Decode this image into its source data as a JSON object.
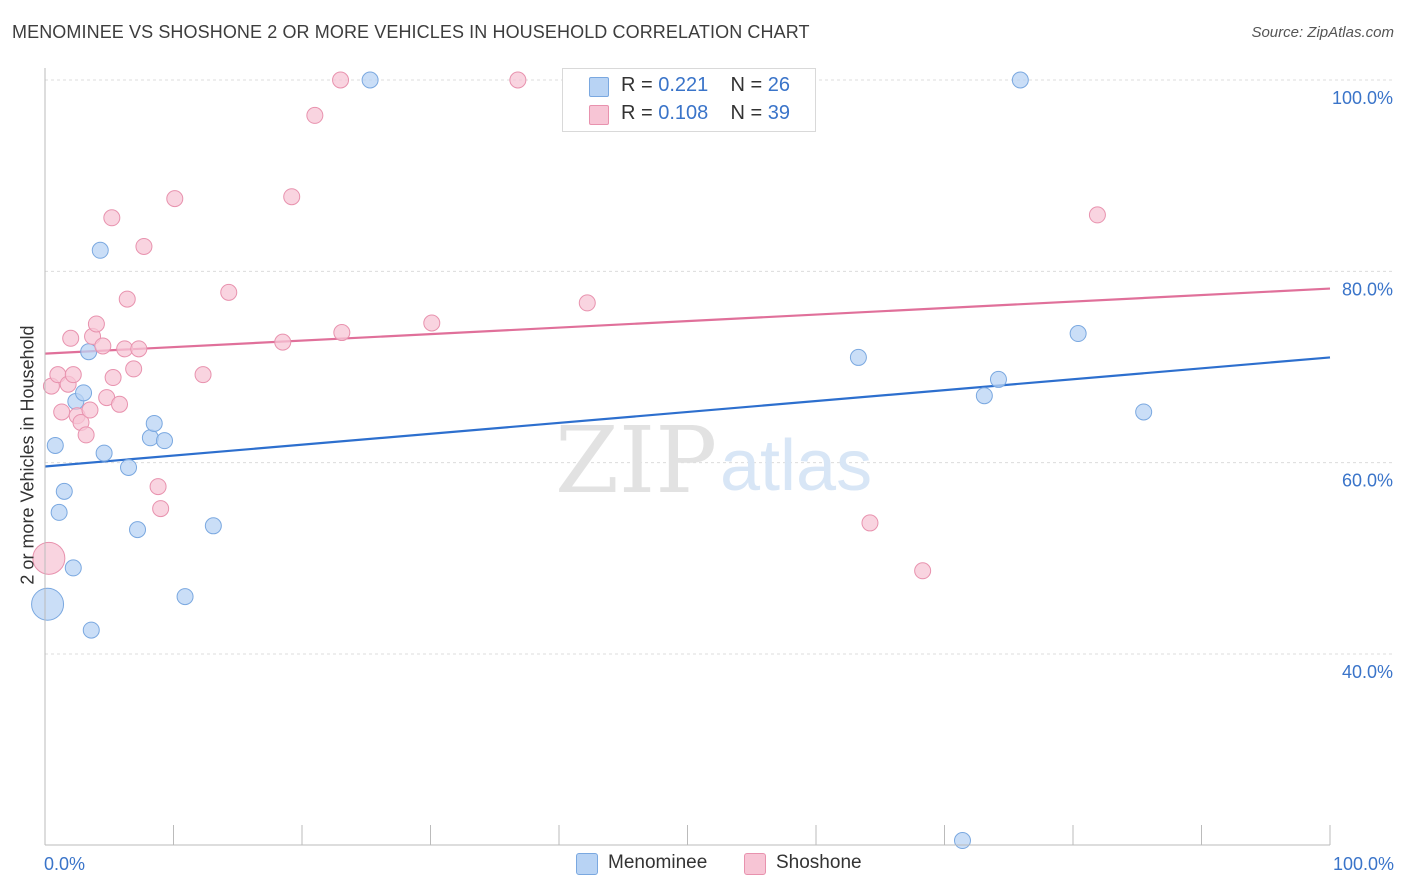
{
  "title": "MENOMINEE VS SHOSHONE 2 OR MORE VEHICLES IN HOUSEHOLD CORRELATION CHART",
  "source": "Source: ZipAtlas.com",
  "watermark": {
    "zip": "ZIP",
    "atlas": "atlas"
  },
  "legend": {
    "rows": [
      {
        "r_label": "R = ",
        "r_value": "0.221",
        "n_label": "N = ",
        "n_value": "26",
        "color": "#b8d3f4",
        "border": "#7aa8e0"
      },
      {
        "r_label": "R = ",
        "r_value": "0.108",
        "n_label": "N = ",
        "n_value": "39",
        "color": "#f7c5d5",
        "border": "#e892ae"
      }
    ]
  },
  "bottom_legend": [
    {
      "label": "Menominee",
      "color": "#b8d3f4",
      "border": "#7aa8e0"
    },
    {
      "label": "Shoshone",
      "color": "#f7c5d5",
      "border": "#e892ae"
    }
  ],
  "chart_data": {
    "type": "scatter",
    "title": "MENOMINEE VS SHOSHONE 2 OR MORE VEHICLES IN HOUSEHOLD CORRELATION CHART",
    "xlabel": "",
    "ylabel": "2 or more Vehicles in Household",
    "xlim": [
      0,
      100
    ],
    "ylim": [
      20,
      102
    ],
    "x_tick_labels": [
      "0.0%",
      "100.0%"
    ],
    "y_ticks": [
      40,
      60,
      80,
      100
    ],
    "y_tick_labels": [
      "40.0%",
      "60.0%",
      "80.0%",
      "100.0%"
    ],
    "grid": true,
    "legend_position": "top-center",
    "series": [
      {
        "name": "Menominee",
        "color": "#7aa8e0",
        "fill": "#b8d3f4",
        "line_color": "#2d6fce",
        "trend": {
          "x": [
            0,
            100
          ],
          "y": [
            59.6,
            71.0
          ]
        },
        "points": [
          {
            "x": 0.2,
            "y": 45.2,
            "big": true
          },
          {
            "x": 0.8,
            "y": 61.8
          },
          {
            "x": 1.1,
            "y": 54.8
          },
          {
            "x": 1.5,
            "y": 57.0
          },
          {
            "x": 2.2,
            "y": 49.0
          },
          {
            "x": 2.4,
            "y": 66.4
          },
          {
            "x": 3.0,
            "y": 67.3
          },
          {
            "x": 3.4,
            "y": 71.6
          },
          {
            "x": 3.6,
            "y": 42.5
          },
          {
            "x": 4.3,
            "y": 82.2
          },
          {
            "x": 4.6,
            "y": 61.0
          },
          {
            "x": 6.5,
            "y": 59.5
          },
          {
            "x": 7.2,
            "y": 53.0
          },
          {
            "x": 8.2,
            "y": 62.6
          },
          {
            "x": 8.5,
            "y": 64.1
          },
          {
            "x": 9.3,
            "y": 62.3
          },
          {
            "x": 10.9,
            "y": 46.0
          },
          {
            "x": 13.1,
            "y": 53.4
          },
          {
            "x": 25.3,
            "y": 100.0
          },
          {
            "x": 63.3,
            "y": 71.0
          },
          {
            "x": 73.1,
            "y": 67.0
          },
          {
            "x": 74.2,
            "y": 68.7
          },
          {
            "x": 75.9,
            "y": 100.0
          },
          {
            "x": 80.4,
            "y": 73.5
          },
          {
            "x": 85.5,
            "y": 65.3
          },
          {
            "x": 71.4,
            "y": 20.5
          }
        ]
      },
      {
        "name": "Shoshone",
        "color": "#e892ae",
        "fill": "#f7c5d5",
        "line_color": "#e0709a",
        "trend": {
          "x": [
            0,
            100
          ],
          "y": [
            71.4,
            78.2
          ]
        },
        "points": [
          {
            "x": 0.3,
            "y": 50.0,
            "big": true
          },
          {
            "x": 0.5,
            "y": 68.0
          },
          {
            "x": 1.0,
            "y": 69.2
          },
          {
            "x": 1.3,
            "y": 65.3
          },
          {
            "x": 1.8,
            "y": 68.2
          },
          {
            "x": 2.0,
            "y": 73.0
          },
          {
            "x": 2.2,
            "y": 69.2
          },
          {
            "x": 2.5,
            "y": 64.9
          },
          {
            "x": 2.8,
            "y": 64.2
          },
          {
            "x": 3.2,
            "y": 62.9
          },
          {
            "x": 3.5,
            "y": 65.5
          },
          {
            "x": 3.7,
            "y": 73.2
          },
          {
            "x": 4.0,
            "y": 74.5
          },
          {
            "x": 4.5,
            "y": 72.2
          },
          {
            "x": 4.8,
            "y": 66.8
          },
          {
            "x": 5.2,
            "y": 85.6
          },
          {
            "x": 5.3,
            "y": 68.9
          },
          {
            "x": 5.8,
            "y": 66.1
          },
          {
            "x": 6.2,
            "y": 71.9
          },
          {
            "x": 6.4,
            "y": 77.1
          },
          {
            "x": 6.9,
            "y": 69.8
          },
          {
            "x": 7.3,
            "y": 71.9
          },
          {
            "x": 7.7,
            "y": 82.6
          },
          {
            "x": 8.8,
            "y": 57.5
          },
          {
            "x": 9.0,
            "y": 55.2
          },
          {
            "x": 10.1,
            "y": 87.6
          },
          {
            "x": 12.3,
            "y": 69.2
          },
          {
            "x": 14.3,
            "y": 77.8
          },
          {
            "x": 18.5,
            "y": 72.6
          },
          {
            "x": 19.2,
            "y": 87.8
          },
          {
            "x": 21.0,
            "y": 96.3
          },
          {
            "x": 23.0,
            "y": 100.0
          },
          {
            "x": 23.1,
            "y": 73.6
          },
          {
            "x": 30.1,
            "y": 74.6
          },
          {
            "x": 36.8,
            "y": 100.0
          },
          {
            "x": 42.2,
            "y": 76.7
          },
          {
            "x": 64.2,
            "y": 53.7
          },
          {
            "x": 68.3,
            "y": 48.7
          },
          {
            "x": 81.9,
            "y": 85.9
          }
        ]
      }
    ]
  }
}
